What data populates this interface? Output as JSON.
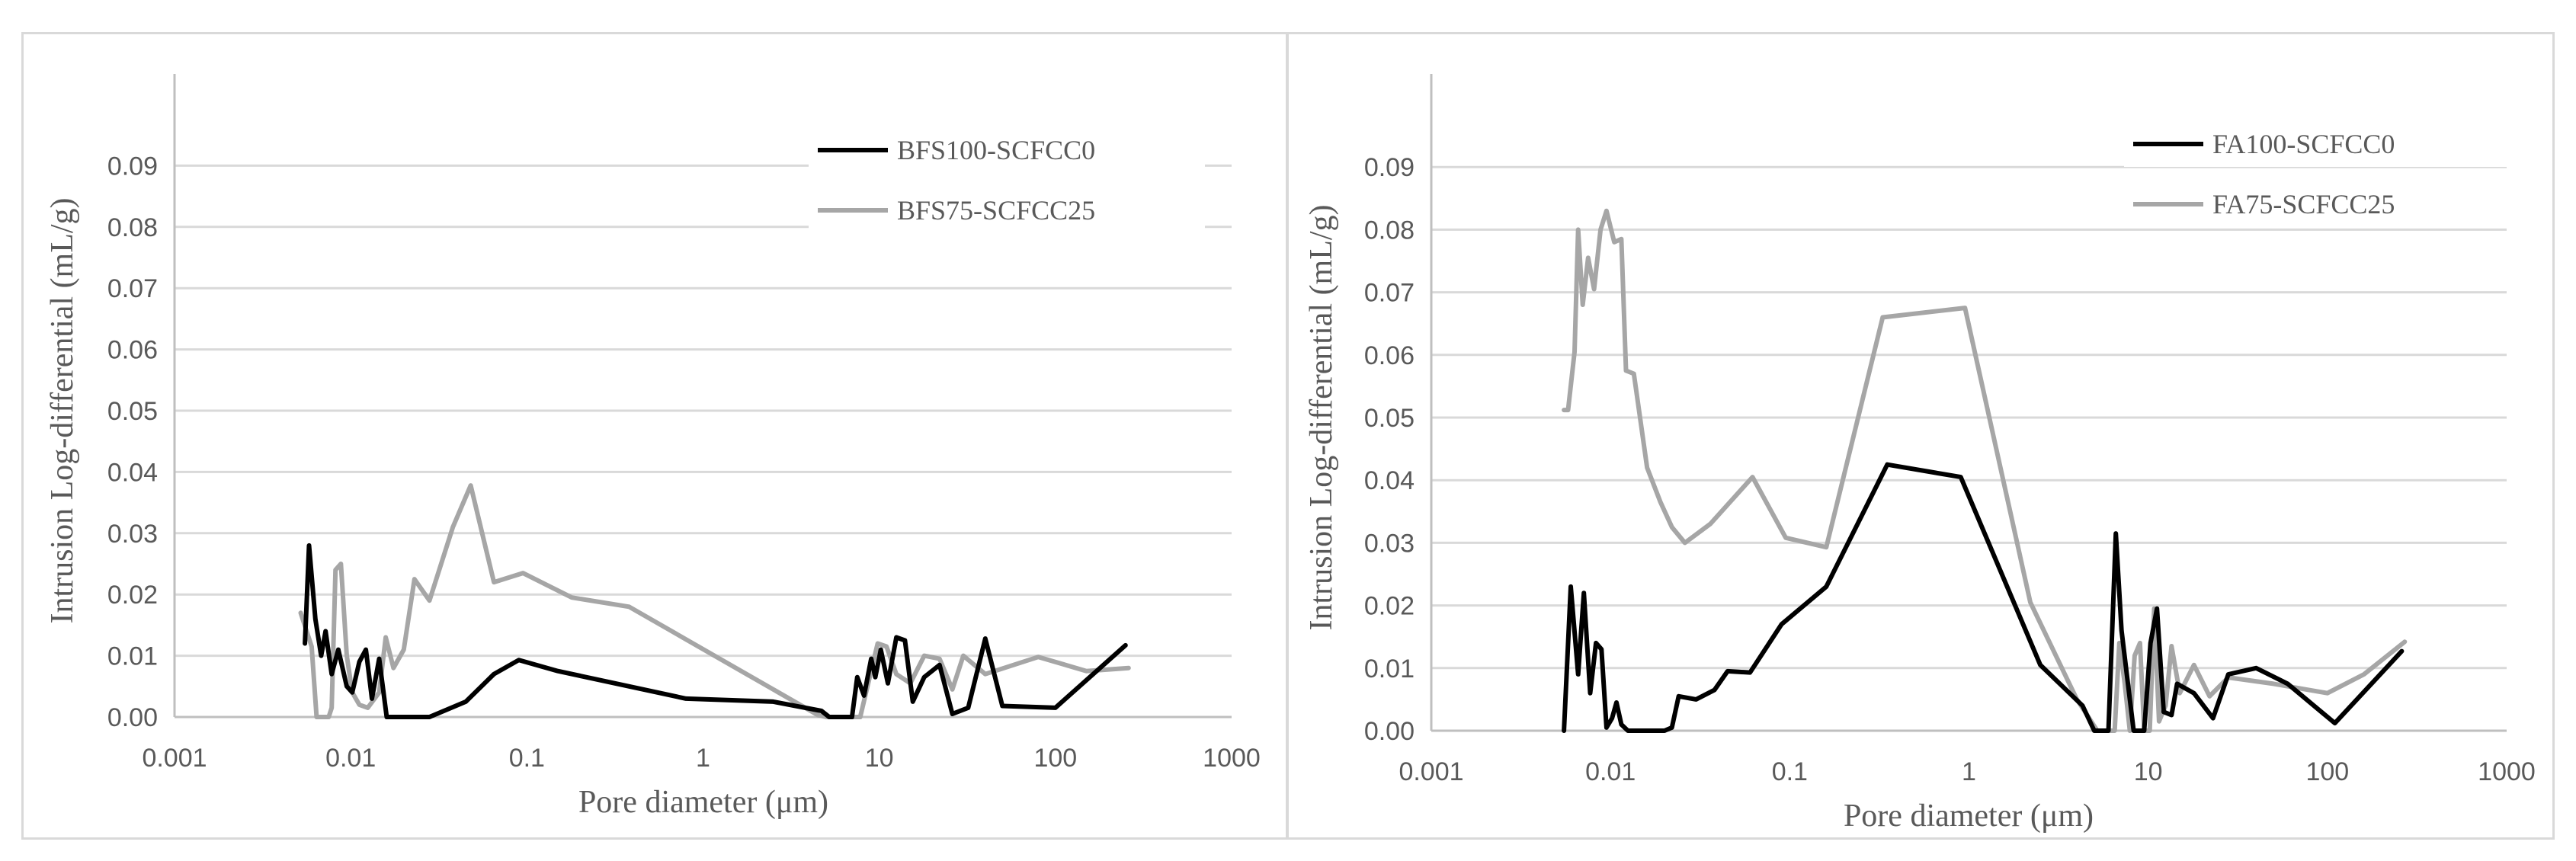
{
  "chart_data": [
    {
      "type": "line",
      "x_scale": "log",
      "xlabel": "Pore diameter (μm)",
      "ylabel": "Intrusion Log-differential (mL/g)",
      "xlim": [
        0.001,
        1000
      ],
      "ylim": [
        0,
        0.1
      ],
      "x_ticks": [
        "0.001",
        "0.01",
        "0.1",
        "1",
        "10",
        "100",
        "1000"
      ],
      "y_ticks": [
        "0.00",
        "0.01",
        "0.02",
        "0.03",
        "0.04",
        "0.05",
        "0.06",
        "0.07",
        "0.08",
        "0.09"
      ],
      "grid": "horizontal",
      "legend_position": "top-right",
      "series": [
        {
          "name": "BFS100-SCFCC0",
          "color": "#000000",
          "points": [
            [
              0.0055,
              0.012
            ],
            [
              0.0058,
              0.028
            ],
            [
              0.0063,
              0.016
            ],
            [
              0.0068,
              0.01
            ],
            [
              0.0072,
              0.014
            ],
            [
              0.0078,
              0.007
            ],
            [
              0.0085,
              0.011
            ],
            [
              0.0095,
              0.005
            ],
            [
              0.0102,
              0.004
            ],
            [
              0.0112,
              0.009
            ],
            [
              0.0122,
              0.011
            ],
            [
              0.0132,
              0.003
            ],
            [
              0.0145,
              0.0095
            ],
            [
              0.016,
              0.0
            ],
            [
              0.028,
              0.0
            ],
            [
              0.045,
              0.0025
            ],
            [
              0.065,
              0.007
            ],
            [
              0.09,
              0.0093
            ],
            [
              0.15,
              0.0075
            ],
            [
              0.8,
              0.003
            ],
            [
              2.5,
              0.0025
            ],
            [
              4.7,
              0.001
            ],
            [
              5.2,
              0.0
            ],
            [
              7.0,
              0.0
            ],
            [
              7.5,
              0.0065
            ],
            [
              8.2,
              0.0035
            ],
            [
              9.0,
              0.0095
            ],
            [
              9.5,
              0.0065
            ],
            [
              10.2,
              0.011
            ],
            [
              11.2,
              0.0055
            ],
            [
              12.5,
              0.013
            ],
            [
              14.0,
              0.0125
            ],
            [
              15.5,
              0.0025
            ],
            [
              18.0,
              0.0065
            ],
            [
              22.0,
              0.0085
            ],
            [
              26.0,
              0.0005
            ],
            [
              32.0,
              0.0015
            ],
            [
              40.0,
              0.0128
            ],
            [
              50.0,
              0.0018
            ],
            [
              100.0,
              0.0015
            ],
            [
              250.0,
              0.0117
            ]
          ]
        },
        {
          "name": "BFS75-SCFCC25",
          "color": "#a6a6a6",
          "points": [
            [
              0.0052,
              0.017
            ],
            [
              0.006,
              0.0115
            ],
            [
              0.0064,
              0.0
            ],
            [
              0.0075,
              0.0
            ],
            [
              0.0078,
              0.0015
            ],
            [
              0.0082,
              0.024
            ],
            [
              0.0088,
              0.025
            ],
            [
              0.0095,
              0.01
            ],
            [
              0.0102,
              0.004
            ],
            [
              0.0112,
              0.002
            ],
            [
              0.0125,
              0.0015
            ],
            [
              0.0145,
              0.004
            ],
            [
              0.0158,
              0.013
            ],
            [
              0.0175,
              0.008
            ],
            [
              0.02,
              0.011
            ],
            [
              0.023,
              0.0225
            ],
            [
              0.028,
              0.019
            ],
            [
              0.038,
              0.031
            ],
            [
              0.048,
              0.0378
            ],
            [
              0.065,
              0.022
            ],
            [
              0.095,
              0.0235
            ],
            [
              0.18,
              0.0195
            ],
            [
              0.38,
              0.018
            ],
            [
              4.5,
              0.0003
            ],
            [
              5.0,
              0.0
            ],
            [
              7.2,
              0.0
            ],
            [
              7.8,
              0.0
            ],
            [
              9.8,
              0.012
            ],
            [
              11.0,
              0.0115
            ],
            [
              12.5,
              0.007
            ],
            [
              15.0,
              0.0055
            ],
            [
              18.0,
              0.01
            ],
            [
              22.0,
              0.0095
            ],
            [
              26.0,
              0.0045
            ],
            [
              30.0,
              0.01
            ],
            [
              40.0,
              0.007
            ],
            [
              80.0,
              0.0098
            ],
            [
              150.0,
              0.0075
            ],
            [
              260.0,
              0.008
            ]
          ]
        }
      ]
    },
    {
      "type": "line",
      "x_scale": "log",
      "xlabel": "Pore diameter (μm)",
      "ylabel": "Intrusion Log-differential (mL/g)",
      "xlim": [
        0.001,
        1000
      ],
      "ylim": [
        0,
        0.1
      ],
      "x_ticks": [
        "0.001",
        "0.01",
        "0.1",
        "1",
        "10",
        "100",
        "1000"
      ],
      "y_ticks": [
        "0.00",
        "0.01",
        "0.02",
        "0.03",
        "0.04",
        "0.05",
        "0.06",
        "0.07",
        "0.08",
        "0.09"
      ],
      "grid": "horizontal",
      "legend_position": "top-right",
      "series": [
        {
          "name": "FA100-SCFCC0",
          "color": "#000000",
          "points": [
            [
              0.0055,
              0.0
            ],
            [
              0.006,
              0.023
            ],
            [
              0.0066,
              0.009
            ],
            [
              0.0071,
              0.022
            ],
            [
              0.0077,
              0.006
            ],
            [
              0.0083,
              0.014
            ],
            [
              0.0089,
              0.013
            ],
            [
              0.0095,
              0.0005
            ],
            [
              0.0102,
              0.002
            ],
            [
              0.0108,
              0.0045
            ],
            [
              0.0115,
              0.001
            ],
            [
              0.0125,
              0.0
            ],
            [
              0.02,
              0.0
            ],
            [
              0.022,
              0.0005
            ],
            [
              0.024,
              0.0055
            ],
            [
              0.03,
              0.005
            ],
            [
              0.038,
              0.0065
            ],
            [
              0.045,
              0.0095
            ],
            [
              0.06,
              0.0093
            ],
            [
              0.09,
              0.017
            ],
            [
              0.16,
              0.023
            ],
            [
              0.35,
              0.0425
            ],
            [
              0.9,
              0.0405
            ],
            [
              2.5,
              0.0105
            ],
            [
              4.3,
              0.004
            ],
            [
              5.0,
              0.0
            ],
            [
              6.0,
              0.0
            ],
            [
              6.6,
              0.0315
            ],
            [
              7.1,
              0.016
            ],
            [
              7.6,
              0.009
            ],
            [
              8.3,
              0.0
            ],
            [
              9.5,
              0.0
            ],
            [
              10.3,
              0.014
            ],
            [
              11.2,
              0.0195
            ],
            [
              12.2,
              0.003
            ],
            [
              13.5,
              0.0025
            ],
            [
              14.5,
              0.0075
            ],
            [
              18.0,
              0.006
            ],
            [
              23.0,
              0.002
            ],
            [
              28.0,
              0.009
            ],
            [
              40.0,
              0.01
            ],
            [
              60.0,
              0.0075
            ],
            [
              110.0,
              0.0012
            ],
            [
              260.0,
              0.0127
            ]
          ]
        },
        {
          "name": "FA75-SCFCC25",
          "color": "#a6a6a6",
          "points": [
            [
              0.0055,
              0.0512
            ],
            [
              0.0058,
              0.0512
            ],
            [
              0.0063,
              0.0605
            ],
            [
              0.0066,
              0.08
            ],
            [
              0.007,
              0.068
            ],
            [
              0.0075,
              0.0755
            ],
            [
              0.0081,
              0.0705
            ],
            [
              0.0088,
              0.08
            ],
            [
              0.0095,
              0.083
            ],
            [
              0.0105,
              0.078
            ],
            [
              0.0115,
              0.0785
            ],
            [
              0.0122,
              0.0575
            ],
            [
              0.0135,
              0.057
            ],
            [
              0.016,
              0.042
            ],
            [
              0.019,
              0.0365
            ],
            [
              0.022,
              0.0325
            ],
            [
              0.026,
              0.03
            ],
            [
              0.036,
              0.033
            ],
            [
              0.062,
              0.0405
            ],
            [
              0.095,
              0.0308
            ],
            [
              0.16,
              0.0293
            ],
            [
              0.33,
              0.066
            ],
            [
              0.95,
              0.0675
            ],
            [
              2.2,
              0.0205
            ],
            [
              4.0,
              0.005
            ],
            [
              5.2,
              0.0
            ],
            [
              6.5,
              0.0
            ],
            [
              6.9,
              0.014
            ],
            [
              7.4,
              0.0075
            ],
            [
              7.9,
              0.0
            ],
            [
              8.4,
              0.012
            ],
            [
              9.0,
              0.014
            ],
            [
              9.5,
              0.0
            ],
            [
              10.2,
              0.0
            ],
            [
              10.8,
              0.0195
            ],
            [
              11.5,
              0.0015
            ],
            [
              12.5,
              0.004
            ],
            [
              13.5,
              0.0135
            ],
            [
              15.0,
              0.006
            ],
            [
              18.0,
              0.0105
            ],
            [
              22.0,
              0.0055
            ],
            [
              28.0,
              0.0085
            ],
            [
              50.0,
              0.0075
            ],
            [
              100.0,
              0.006
            ],
            [
              160.0,
              0.009
            ],
            [
              270.0,
              0.0142
            ]
          ]
        }
      ]
    }
  ]
}
